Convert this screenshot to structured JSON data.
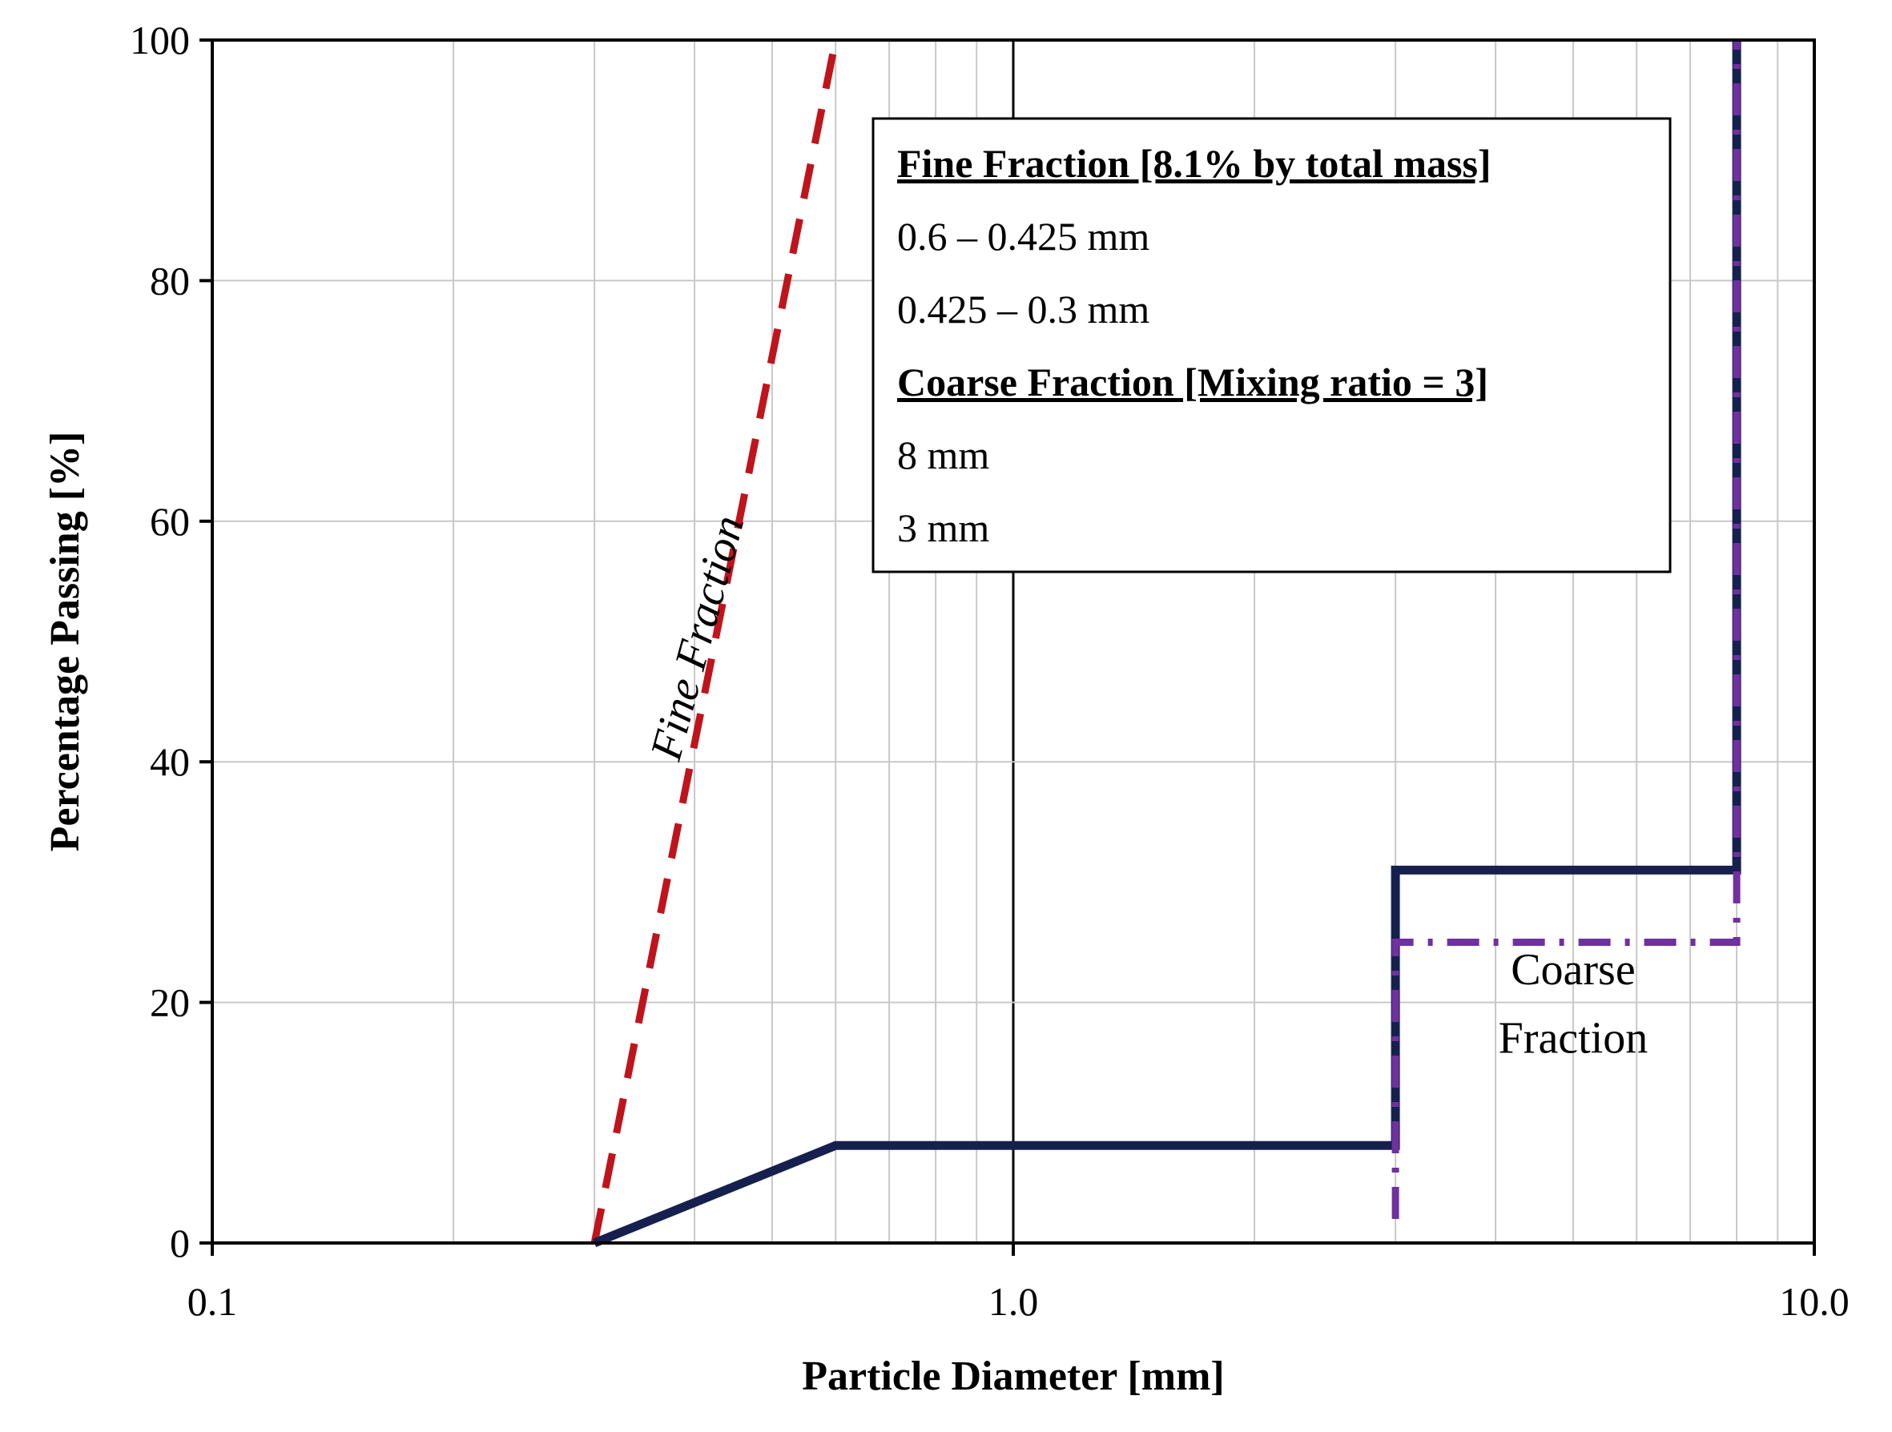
{
  "chart_data": {
    "type": "line",
    "xlabel": "Particle Diameter [mm]",
    "ylabel": "Percentage Passing [%]",
    "x_scale": "log",
    "xlim": [
      0.1,
      10.0
    ],
    "ylim": [
      0,
      100
    ],
    "x_ticks": [
      "0.1",
      "1.0",
      "10.0"
    ],
    "y_ticks": [
      "0",
      "20",
      "40",
      "60",
      "80",
      "100"
    ],
    "grid": true,
    "legend": {
      "placement": "top-right",
      "items": [
        {
          "text": "Fine Fraction [8.1% by total mass]",
          "style": "header"
        },
        {
          "text": "0.6 – 0.425 mm",
          "style": "item"
        },
        {
          "text": "0.425 – 0.3 mm",
          "style": "item"
        },
        {
          "text": "Coarse Fraction [Mixing ratio = 3]",
          "style": "header"
        },
        {
          "text": "8 mm",
          "style": "item"
        },
        {
          "text": "3 mm",
          "style": "item"
        }
      ]
    },
    "series": [
      {
        "role": "fine",
        "color": "#c0141c",
        "dash": "dashed",
        "points": [
          [
            0.3,
            0
          ],
          [
            0.6,
            100
          ]
        ]
      },
      {
        "role": "combined",
        "color": "#16204f",
        "dash": "solid",
        "points": [
          [
            0.3,
            0
          ],
          [
            0.6,
            8.1
          ],
          [
            3.0,
            8.1
          ],
          [
            3.0,
            31
          ],
          [
            8.0,
            31
          ],
          [
            8.0,
            100
          ]
        ]
      },
      {
        "role": "coarse",
        "color": "#7030a0",
        "dash": "dashdot",
        "points": [
          [
            3.0,
            2
          ],
          [
            3.0,
            25
          ],
          [
            8.0,
            25
          ],
          [
            8.0,
            100
          ]
        ]
      }
    ],
    "annotations": [
      {
        "text": "Fine Fraction",
        "x": 0.42,
        "y": 50,
        "rotation": -75
      },
      {
        "text": "Coarse",
        "x": 5.0,
        "y": 21.5
      },
      {
        "text": "Fraction",
        "x": 5.0,
        "y": 15.8
      }
    ]
  }
}
